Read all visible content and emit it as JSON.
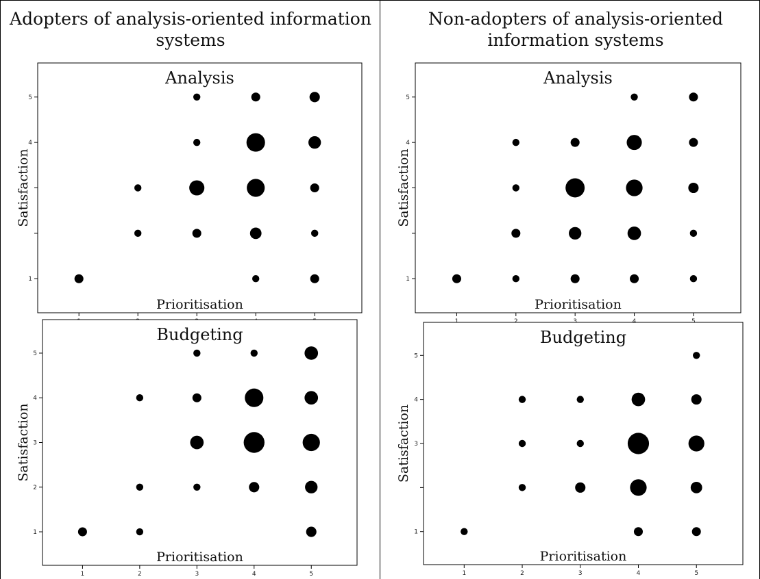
{
  "headers": {
    "left": "Adopters of analysis-oriented information systems",
    "right": "Non-adopters of analysis-oriented information systems"
  },
  "chart_data": [
    {
      "type": "scatter",
      "group": "Adopters of analysis-oriented information systems",
      "title": "Analysis",
      "xlabel": "Prioritisation",
      "ylabel": "Satisfaction",
      "xlim": [
        0.3,
        5.8
      ],
      "ylim": [
        0.25,
        5.75
      ],
      "x_ticks": [
        "1",
        "2",
        "3",
        "4",
        "5"
      ],
      "y_ticks": [
        "1",
        "2",
        "3",
        "4",
        "5"
      ],
      "y_tick_labels_visible": [
        true,
        false,
        false,
        true,
        true
      ],
      "x_ticks_visible": true,
      "points": [
        {
          "x": 1,
          "y": 1,
          "size": 2
        },
        {
          "x": 2,
          "y": 2,
          "size": 1
        },
        {
          "x": 2,
          "y": 3,
          "size": 1
        },
        {
          "x": 3,
          "y": 2,
          "size": 2
        },
        {
          "x": 3,
          "y": 3,
          "size": 8
        },
        {
          "x": 3,
          "y": 4,
          "size": 1
        },
        {
          "x": 3,
          "y": 5,
          "size": 1
        },
        {
          "x": 4,
          "y": 1,
          "size": 1
        },
        {
          "x": 4,
          "y": 2,
          "size": 4
        },
        {
          "x": 4,
          "y": 3,
          "size": 12
        },
        {
          "x": 4,
          "y": 4,
          "size": 13
        },
        {
          "x": 4,
          "y": 5,
          "size": 2
        },
        {
          "x": 5,
          "y": 1,
          "size": 2
        },
        {
          "x": 5,
          "y": 2,
          "size": 1
        },
        {
          "x": 5,
          "y": 3,
          "size": 2
        },
        {
          "x": 5,
          "y": 4,
          "size": 5
        },
        {
          "x": 5,
          "y": 5,
          "size": 3
        }
      ]
    },
    {
      "type": "scatter",
      "group": "Non-adopters of analysis-oriented information systems",
      "title": "Analysis",
      "xlabel": "Prioritisation",
      "ylabel": "Satisfaction",
      "xlim": [
        0.3,
        5.8
      ],
      "ylim": [
        0.25,
        5.75
      ],
      "x_ticks": [
        "1",
        "2",
        "3",
        "4",
        "5"
      ],
      "y_ticks": [
        "1",
        "2",
        "3",
        "4",
        "5"
      ],
      "y_tick_labels_visible": [
        true,
        false,
        false,
        true,
        true
      ],
      "x_ticks_visible": true,
      "points": [
        {
          "x": 1,
          "y": 1,
          "size": 2
        },
        {
          "x": 2,
          "y": 1,
          "size": 1
        },
        {
          "x": 2,
          "y": 2,
          "size": 2
        },
        {
          "x": 2,
          "y": 3,
          "size": 1
        },
        {
          "x": 2,
          "y": 4,
          "size": 1
        },
        {
          "x": 3,
          "y": 1,
          "size": 2
        },
        {
          "x": 3,
          "y": 2,
          "size": 5
        },
        {
          "x": 3,
          "y": 3,
          "size": 14
        },
        {
          "x": 3,
          "y": 4,
          "size": 2
        },
        {
          "x": 4,
          "y": 1,
          "size": 2
        },
        {
          "x": 4,
          "y": 2,
          "size": 6
        },
        {
          "x": 4,
          "y": 3,
          "size": 10
        },
        {
          "x": 4,
          "y": 4,
          "size": 8
        },
        {
          "x": 4,
          "y": 5,
          "size": 1
        },
        {
          "x": 5,
          "y": 1,
          "size": 1
        },
        {
          "x": 5,
          "y": 2,
          "size": 1
        },
        {
          "x": 5,
          "y": 3,
          "size": 3
        },
        {
          "x": 5,
          "y": 4,
          "size": 2
        },
        {
          "x": 5,
          "y": 5,
          "size": 2
        }
      ]
    },
    {
      "type": "scatter",
      "group": "Adopters of analysis-oriented information systems",
      "title": "Budgeting",
      "xlabel": "Prioritisation",
      "ylabel": "Satisfaction",
      "xlim": [
        0.3,
        5.8
      ],
      "ylim": [
        0.25,
        5.75
      ],
      "x_ticks": [
        "1",
        "2",
        "3",
        "4",
        "5"
      ],
      "y_ticks": [
        "1",
        "2",
        "3",
        "4",
        "5"
      ],
      "y_tick_labels_visible": [
        true,
        true,
        true,
        true,
        true
      ],
      "x_ticks_visible": true,
      "points": [
        {
          "x": 1,
          "y": 1,
          "size": 2
        },
        {
          "x": 2,
          "y": 1,
          "size": 1
        },
        {
          "x": 2,
          "y": 2,
          "size": 1
        },
        {
          "x": 2,
          "y": 4,
          "size": 1
        },
        {
          "x": 3,
          "y": 2,
          "size": 1
        },
        {
          "x": 3,
          "y": 3,
          "size": 6
        },
        {
          "x": 3,
          "y": 4,
          "size": 2
        },
        {
          "x": 3,
          "y": 5,
          "size": 1
        },
        {
          "x": 4,
          "y": 2,
          "size": 3
        },
        {
          "x": 4,
          "y": 3,
          "size": 17
        },
        {
          "x": 4,
          "y": 4,
          "size": 13
        },
        {
          "x": 4,
          "y": 5,
          "size": 1
        },
        {
          "x": 5,
          "y": 1,
          "size": 3
        },
        {
          "x": 5,
          "y": 2,
          "size": 5
        },
        {
          "x": 5,
          "y": 3,
          "size": 11
        },
        {
          "x": 5,
          "y": 4,
          "size": 6
        },
        {
          "x": 5,
          "y": 5,
          "size": 6
        }
      ]
    },
    {
      "type": "scatter",
      "group": "Non-adopters of analysis-oriented information systems",
      "title": "Budgeting",
      "xlabel": "Prioritisation",
      "ylabel": "Satisfaction",
      "xlim": [
        0.3,
        5.8
      ],
      "ylim": [
        0.25,
        5.75
      ],
      "x_ticks": [
        "1",
        "2",
        "3",
        "4",
        "5"
      ],
      "y_ticks": [
        "1",
        "2",
        "3",
        "4",
        "5"
      ],
      "y_tick_labels_visible": [
        true,
        false,
        true,
        true,
        true
      ],
      "x_ticks_visible": true,
      "points": [
        {
          "x": 1,
          "y": 1,
          "size": 1
        },
        {
          "x": 2,
          "y": 2,
          "size": 1
        },
        {
          "x": 2,
          "y": 3,
          "size": 1
        },
        {
          "x": 2,
          "y": 4,
          "size": 1
        },
        {
          "x": 3,
          "y": 2,
          "size": 3
        },
        {
          "x": 3,
          "y": 3,
          "size": 1
        },
        {
          "x": 3,
          "y": 4,
          "size": 1
        },
        {
          "x": 4,
          "y": 1,
          "size": 2
        },
        {
          "x": 4,
          "y": 2,
          "size": 10
        },
        {
          "x": 4,
          "y": 3,
          "size": 18
        },
        {
          "x": 4,
          "y": 4,
          "size": 6
        },
        {
          "x": 5,
          "y": 1,
          "size": 2
        },
        {
          "x": 5,
          "y": 2,
          "size": 4
        },
        {
          "x": 5,
          "y": 3,
          "size": 9
        },
        {
          "x": 5,
          "y": 4,
          "size": 3
        },
        {
          "x": 5,
          "y": 5,
          "size": 1
        }
      ]
    }
  ]
}
